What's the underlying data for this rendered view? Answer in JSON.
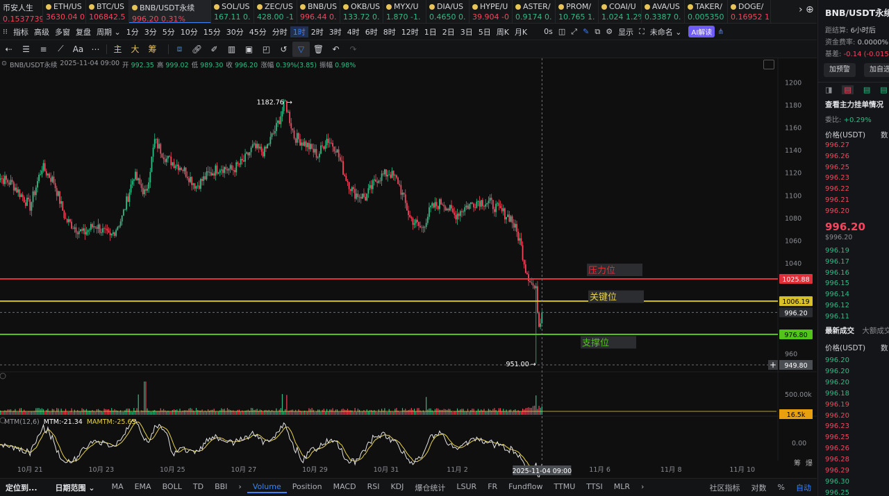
{
  "tabs": [
    {
      "name": "币安人生",
      "price": "0.1537739",
      "dir": "dn",
      "dot": false
    },
    {
      "name": "ETH/US",
      "price": "3630.04",
      "pct": "0",
      "dir": "dn"
    },
    {
      "name": "BTC/US",
      "price": "106842.5",
      "dir": "dn"
    },
    {
      "name": "BNB/USDT永续",
      "price": "996.20",
      "pct": "0.31%",
      "dir": "dn",
      "active": true
    },
    {
      "name": "SOL/US",
      "price": "167.11",
      "pct": "0.",
      "dir": "up"
    },
    {
      "name": "ZEC/US",
      "price": "428.00",
      "pct": "-1",
      "dir": "up"
    },
    {
      "name": "BNB/US",
      "price": "996.44",
      "pct": "0.",
      "dir": "dn"
    },
    {
      "name": "OKB/US",
      "price": "133.72",
      "pct": "0.",
      "dir": "up"
    },
    {
      "name": "MYX/U",
      "price": "1.870",
      "pct": "-1.",
      "dir": "up"
    },
    {
      "name": "DIA/US",
      "price": "0.4650",
      "pct": "0.",
      "dir": "up"
    },
    {
      "name": "HYPE/U",
      "price": "39.904",
      "pct": "-0",
      "dir": "dn"
    },
    {
      "name": "ASTER/",
      "price": "0.9174",
      "pct": "0.",
      "dir": "up"
    },
    {
      "name": "PROM/",
      "price": "10.765",
      "pct": "1.",
      "dir": "up"
    },
    {
      "name": "COAI/U",
      "price": "1.024",
      "pct": "1.2%",
      "dir": "up"
    },
    {
      "name": "AVA/US",
      "price": "0.3387",
      "pct": "0.",
      "dir": "up"
    },
    {
      "name": "TAKER/",
      "price": "0.005350",
      "dir": "up"
    },
    {
      "name": "DOGE/",
      "price": "0.16952",
      "pct": "1",
      "dir": "dn"
    }
  ],
  "tab_controls": "› ⊕",
  "toolbar": {
    "left": [
      "指标",
      "高级",
      "多窗",
      "复盘",
      "周期 ⌄"
    ],
    "periods": [
      "1分",
      "3分",
      "5分",
      "10分",
      "15分",
      "30分",
      "45分",
      "分时",
      "1时",
      "2时",
      "3时",
      "4时",
      "6时",
      "8时",
      "12时",
      "1日",
      "2日",
      "3日",
      "5日",
      "周K",
      "月K"
    ],
    "active_period": "1时",
    "right": [
      "0s",
      "显示",
      "未命名 ⌄",
      "AI解读"
    ]
  },
  "drawbar": {
    "indicators": [
      "主",
      "大",
      "筹"
    ]
  },
  "legend": {
    "pair": "BNB/USDT永续",
    "date": "2025-11-04 09:00",
    "open_label": "开",
    "open": "992.35",
    "high_label": "高",
    "high": "999.02",
    "low_label": "低",
    "low": "989.30",
    "close_label": "收",
    "close": "996.20",
    "chg_label": "涨幅",
    "chg": "0.39%(3.85)",
    "amp_label": "振幅",
    "amp": "0.98%"
  },
  "mtm_legend": {
    "name": "MTM(12,6)",
    "mtm": "MTM:-21.34",
    "mamtm": "MAMTM:-25.65"
  },
  "annotations": {
    "resistance": "压力位",
    "key": "关键位",
    "support": "支撑位"
  },
  "price_tags": {
    "resistance": "1025.88",
    "key": "1006.19",
    "current": "996.20",
    "support": "976.80",
    "cursor": "949.80",
    "volume": "16.5k"
  },
  "extremes": {
    "high": "1182.76",
    "low": "951.00"
  },
  "date_axis": [
    "10月 21",
    "10月 23",
    "10月 25",
    "10月 27",
    "10月 29",
    "10月 31",
    "11月 2",
    "11月 6",
    "11月 8",
    "11月 10"
  ],
  "cursor_date": "2025-11-04 09:00",
  "axis_controls": [
    "筹",
    "爆"
  ],
  "bottom": {
    "left": [
      "定位到...",
      "日期范围 ⌄"
    ],
    "indicators": [
      "MA",
      "EMA",
      "BOLL",
      "TD",
      "BBI",
      "›",
      "Volume",
      "Position",
      "MACD",
      "RSI",
      "KDJ",
      "爆仓统计",
      "LSUR",
      "FR",
      "Fundflow",
      "TTMU",
      "TTSI",
      "MLR",
      "›"
    ],
    "active": "Volume",
    "right": [
      "社区指标",
      "对数",
      "%",
      "自动"
    ]
  },
  "chart_data": {
    "type": "candlestick",
    "x_range": [
      "2025-10-20",
      "2025-11-11"
    ],
    "y_axis_ticks": [
      1200,
      1180,
      1160,
      1140,
      1120,
      1100,
      1080,
      1060,
      1040,
      960
    ],
    "volume_ticks": [
      "500.00k"
    ],
    "mtm_ticks": [
      "0.00"
    ],
    "ylim": [
      940,
      1210
    ],
    "key_levels": [
      1025.88,
      1006.19,
      996.2,
      976.8
    ],
    "highest": 1182.76,
    "lowest": 951.0,
    "close_path": [
      {
        "t": "10-20 00",
        "p": 1118
      },
      {
        "t": "10-20 12",
        "p": 1110
      },
      {
        "t": "10-21 00",
        "p": 1090
      },
      {
        "t": "10-21 08",
        "p": 1125
      },
      {
        "t": "10-21 16",
        "p": 1112
      },
      {
        "t": "10-22 00",
        "p": 1078
      },
      {
        "t": "10-22 12",
        "p": 1066
      },
      {
        "t": "10-22 20",
        "p": 1074
      },
      {
        "t": "10-23 06",
        "p": 1062
      },
      {
        "t": "10-23 14",
        "p": 1080
      },
      {
        "t": "10-23 22",
        "p": 1118
      },
      {
        "t": "10-24 06",
        "p": 1100
      },
      {
        "t": "10-24 12",
        "p": 1148
      },
      {
        "t": "10-24 20",
        "p": 1132
      },
      {
        "t": "10-25 06",
        "p": 1125
      },
      {
        "t": "10-25 16",
        "p": 1108
      },
      {
        "t": "10-26 00",
        "p": 1118
      },
      {
        "t": "10-26 08",
        "p": 1125
      },
      {
        "t": "10-26 16",
        "p": 1122
      },
      {
        "t": "10-27 00",
        "p": 1130
      },
      {
        "t": "10-27 06",
        "p": 1142
      },
      {
        "t": "10-27 14",
        "p": 1138
      },
      {
        "t": "10-27 22",
        "p": 1160
      },
      {
        "t": "10-28 04",
        "p": 1182
      },
      {
        "t": "10-28 10",
        "p": 1152
      },
      {
        "t": "10-28 18",
        "p": 1145
      },
      {
        "t": "10-29 02",
        "p": 1135
      },
      {
        "t": "10-29 08",
        "p": 1150
      },
      {
        "t": "10-29 14",
        "p": 1142
      },
      {
        "t": "10-29 20",
        "p": 1118
      },
      {
        "t": "10-30 02",
        "p": 1102
      },
      {
        "t": "10-30 10",
        "p": 1098
      },
      {
        "t": "10-30 18",
        "p": 1115
      },
      {
        "t": "10-31 02",
        "p": 1120
      },
      {
        "t": "10-31 08",
        "p": 1112
      },
      {
        "t": "10-31 16",
        "p": 1080
      },
      {
        "t": "11-01 00",
        "p": 1070
      },
      {
        "t": "11-01 06",
        "p": 1088
      },
      {
        "t": "11-01 14",
        "p": 1094
      },
      {
        "t": "11-01 22",
        "p": 1082
      },
      {
        "t": "11-02 06",
        "p": 1090
      },
      {
        "t": "11-02 14",
        "p": 1095
      },
      {
        "t": "11-02 22",
        "p": 1093
      },
      {
        "t": "11-03 06",
        "p": 1085
      },
      {
        "t": "11-03 12",
        "p": 1080
      },
      {
        "t": "11-03 18",
        "p": 1060
      },
      {
        "t": "11-03 22",
        "p": 1035
      },
      {
        "t": "11-04 02",
        "p": 1022
      },
      {
        "t": "11-04 05",
        "p": 1015
      },
      {
        "t": "11-04 07",
        "p": 985
      },
      {
        "t": "11-04 09",
        "p": 996.2
      }
    ]
  },
  "right_panel": {
    "title": "BNB/USDT永续",
    "settle_label": "距结算",
    "settle": "6小时后",
    "fee_label": "资金费率:",
    "fee": "0.0000%",
    "basis_label": "基差:",
    "basis": "-0.14 (-0.015%",
    "btn_alert": "加预警",
    "btn_watch": "加自选",
    "orders_title": "查看主力挂单情况",
    "ratio_label": "委比:",
    "ratio": "+0.29%",
    "col_price": "价格(USDT)",
    "col_qty": "数",
    "asks": [
      "996.27",
      "996.26",
      "996.25",
      "996.23",
      "996.22",
      "996.21",
      "996.20"
    ],
    "last": "996.20",
    "last_sub": "$996.20",
    "bids": [
      "996.19",
      "996.17",
      "996.16",
      "996.15",
      "996.14",
      "996.12",
      "996.11"
    ],
    "trades_tab": "最新成交",
    "trades_tab2": "大额成交",
    "trades_col": "价格(USDT)",
    "trades_col2": "数",
    "trades": [
      [
        "996.20",
        "up"
      ],
      [
        "996.20",
        "up"
      ],
      [
        "996.20",
        "up"
      ],
      [
        "996.18",
        "up"
      ],
      [
        "996.19",
        "dn"
      ],
      [
        "996.20",
        "dn"
      ],
      [
        "996.23",
        "dn"
      ],
      [
        "996.25",
        "dn"
      ],
      [
        "996.26",
        "dn"
      ],
      [
        "996.28",
        "dn"
      ],
      [
        "996.29",
        "dn"
      ],
      [
        "996.30",
        "up"
      ],
      [
        "996.25",
        "up"
      ]
    ]
  }
}
